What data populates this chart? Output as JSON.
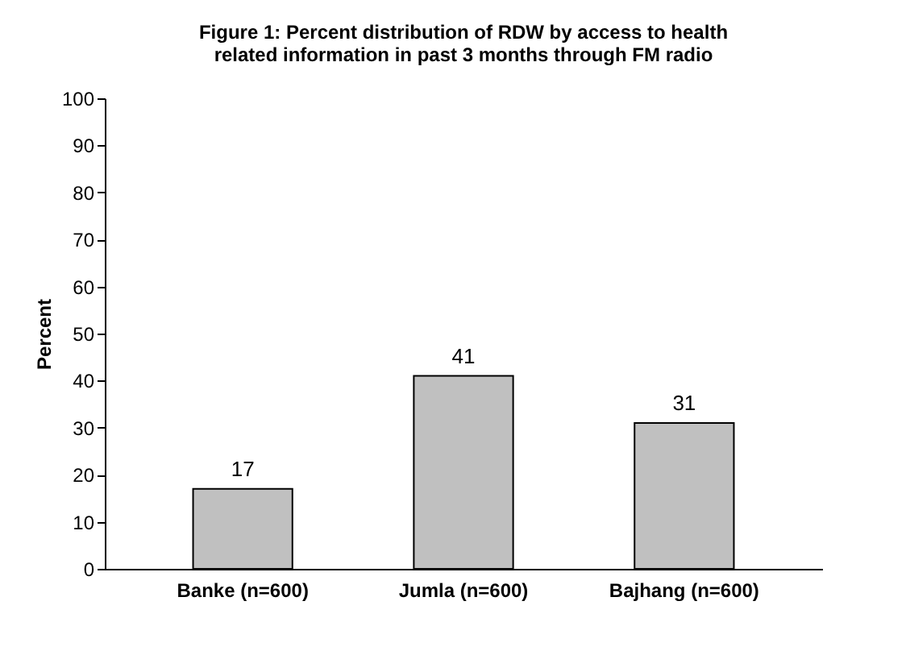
{
  "chart_data": {
    "type": "bar",
    "title": [
      "Figure 1: Percent distribution of RDW by access to health",
      "related information in past 3 months through FM radio"
    ],
    "ylabel": "Percent",
    "categories": [
      "Banke (n=600)",
      "Jumla (n=600)",
      "Bajhang (n=600)"
    ],
    "values": [
      17,
      41,
      31
    ],
    "color": "#c0c0c0",
    "ylim": [
      0,
      100
    ],
    "yticks": [
      0,
      10,
      20,
      30,
      40,
      50,
      60,
      70,
      80,
      90,
      100
    ],
    "data_labels": true,
    "grid": false
  }
}
